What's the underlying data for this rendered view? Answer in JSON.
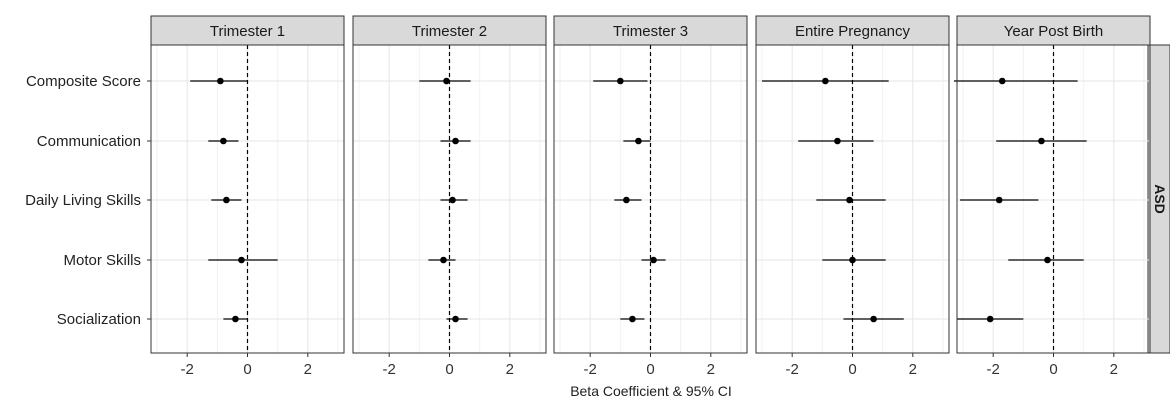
{
  "chart_data": {
    "type": "forest",
    "xlabel": "Beta Coefficient & 95% CI",
    "x_ticks": [
      -2,
      0,
      2
    ],
    "x_tick_labels": [
      "-2",
      "0",
      "2"
    ],
    "xlim": [
      -3.2,
      3.2
    ],
    "reference_line": 0,
    "row_strip": "ASD",
    "categories": [
      "Composite Score",
      "Communication",
      "Daily Living Skills",
      "Motor Skills",
      "Socialization"
    ],
    "panels": [
      {
        "title": "Trimester 1",
        "points": [
          {
            "est": -0.9,
            "lo": -1.9,
            "hi": 0.0
          },
          {
            "est": -0.8,
            "lo": -1.3,
            "hi": -0.3
          },
          {
            "est": -0.7,
            "lo": -1.2,
            "hi": -0.2
          },
          {
            "est": -0.2,
            "lo": -1.3,
            "hi": 1.0
          },
          {
            "est": -0.4,
            "lo": -0.8,
            "hi": 0.0
          }
        ]
      },
      {
        "title": "Trimester 2",
        "points": [
          {
            "est": -0.1,
            "lo": -1.0,
            "hi": 0.7
          },
          {
            "est": 0.2,
            "lo": -0.3,
            "hi": 0.7
          },
          {
            "est": 0.1,
            "lo": -0.3,
            "hi": 0.6
          },
          {
            "est": -0.2,
            "lo": -0.7,
            "hi": 0.2
          },
          {
            "est": 0.2,
            "lo": -0.1,
            "hi": 0.6
          }
        ]
      },
      {
        "title": "Trimester 3",
        "points": [
          {
            "est": -1.0,
            "lo": -1.9,
            "hi": -0.1
          },
          {
            "est": -0.4,
            "lo": -0.9,
            "hi": 0.0
          },
          {
            "est": -0.8,
            "lo": -1.2,
            "hi": -0.3
          },
          {
            "est": 0.1,
            "lo": -0.3,
            "hi": 0.5
          },
          {
            "est": -0.6,
            "lo": -1.0,
            "hi": -0.2
          }
        ]
      },
      {
        "title": "Entire Pregnancy",
        "points": [
          {
            "est": -0.9,
            "lo": -3.0,
            "hi": 1.2
          },
          {
            "est": -0.5,
            "lo": -1.8,
            "hi": 0.7
          },
          {
            "est": -0.1,
            "lo": -1.2,
            "hi": 1.1
          },
          {
            "est": 0.0,
            "lo": -1.0,
            "hi": 1.1
          },
          {
            "est": 0.7,
            "lo": -0.3,
            "hi": 1.7
          }
        ]
      },
      {
        "title": "Year Post Birth",
        "points": [
          {
            "est": -1.7,
            "lo": -3.3,
            "hi": 0.8
          },
          {
            "est": -0.4,
            "lo": -1.9,
            "hi": 1.1
          },
          {
            "est": -1.8,
            "lo": -3.1,
            "hi": -0.5
          },
          {
            "est": -0.2,
            "lo": -1.5,
            "hi": 1.0
          },
          {
            "est": -2.1,
            "lo": -3.2,
            "hi": -1.0
          }
        ]
      }
    ],
    "grid": true,
    "colors": {
      "point": "#000000",
      "strip_fill": "#d9d9d9",
      "border": "#333333",
      "grid_major": "#e6e6e6",
      "grid_minor": "#f2f2f2"
    }
  }
}
